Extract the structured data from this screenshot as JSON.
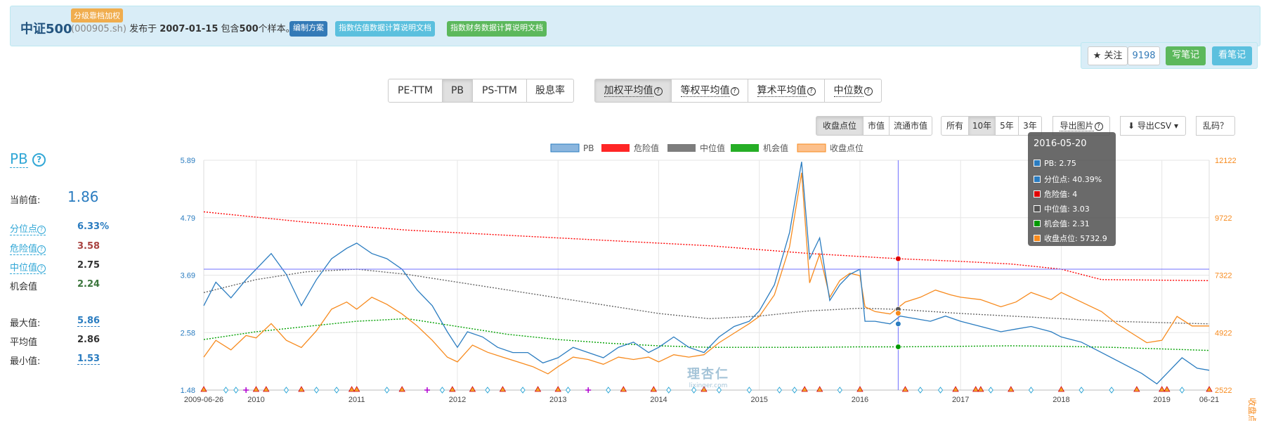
{
  "header": {
    "index_name": "中证500",
    "tier_badge": "分级靠档加权",
    "code": "(000905.sh)",
    "published_prefix": "发布于",
    "published_date": "2007-01-15",
    "contains_prefix": "包含",
    "sample_count": "500",
    "sample_suffix": "个样本。",
    "buttons": {
      "method": "编制方案",
      "valuation_doc": "指数估值数据计算说明文档",
      "finance_doc": "指数财务数据计算说明文档"
    },
    "colors": {
      "method": "#337ab7",
      "valuation_doc": "#5bc0de",
      "finance_doc": "#5cb85c"
    }
  },
  "follow": {
    "follow_label": "★ 关注",
    "follow_count": "9198",
    "write_note": "写笔记",
    "view_note": "看笔记"
  },
  "metric_tabs": [
    "PE-TTM",
    "PB",
    "PS-TTM",
    "股息率"
  ],
  "metric_active": "PB",
  "weight_tabs": [
    "加权平均值",
    "等权平均值",
    "算术平均值",
    "中位数"
  ],
  "weight_active": "加权平均值",
  "overlay_tabs": [
    "收盘点位",
    "市值",
    "流通市值"
  ],
  "overlay_active": "收盘点位",
  "range_tabs": [
    "所有",
    "10年",
    "5年",
    "3年"
  ],
  "range_active": "10年",
  "tools": {
    "export_image": "导出图片",
    "export_csv": "导出CSV",
    "garbled": "乱码？"
  },
  "stats": {
    "title": "PB",
    "current_label": "当前值:",
    "current_value": "1.86",
    "rows": [
      {
        "label": "分位点",
        "value": "6.33%",
        "color": "#2a7cc0",
        "link": true
      },
      {
        "label": "危险值",
        "value": "3.58",
        "color": "#a94442",
        "link": true
      },
      {
        "label": "中位值",
        "value": "2.75",
        "color": "#333333",
        "link": true
      },
      {
        "label": "机会值",
        "value": "2.24",
        "color": "#3c763d",
        "link": false
      },
      {
        "label": "最大值:",
        "value": "5.86",
        "color": "#2a7cc0",
        "link": false
      },
      {
        "label": "平均值",
        "value": "2.86",
        "color": "#333333",
        "link": false
      },
      {
        "label": "最小值:",
        "value": "1.53",
        "color": "#2a7cc0",
        "link": false
      }
    ]
  },
  "tooltip": {
    "date": "2016-05-20",
    "rows": [
      {
        "label": "PB: 2.75",
        "color": "#2a7cc0"
      },
      {
        "label": "分位点: 40.39%",
        "color": "#2a7cc0"
      },
      {
        "label": "危险值: 4",
        "color": "#e00000"
      },
      {
        "label": "中位值: 3.03",
        "color": "#555555"
      },
      {
        "label": "机会值: 2.31",
        "color": "#009900"
      },
      {
        "label": "收盘点位: 5732.9",
        "color": "#f78a1d"
      }
    ]
  },
  "watermark": {
    "main": "理杏仁",
    "sub": "lixinger.com"
  },
  "chart_data": {
    "type": "line",
    "legend": [
      "PB",
      "危险值",
      "中位值",
      "机会值",
      "收盘点位"
    ],
    "series_colors": [
      "#2a7cc0",
      "#ff0000",
      "#666666",
      "#00a000",
      "#f78a1d"
    ],
    "x_ticks": [
      "2009-06-26",
      "2010",
      "2011",
      "2012",
      "2013",
      "2014",
      "2015",
      "2016",
      "2017",
      "2018",
      "2019",
      "06-21"
    ],
    "y_left_ticks": [
      "5.89",
      "4.79",
      "3.69",
      "2.58",
      "1.48"
    ],
    "y_right_ticks": [
      "12122",
      "9722",
      "7322",
      "4922",
      "2522"
    ],
    "y_right_label": "收盘点位",
    "ylim_left": [
      1.48,
      5.89
    ],
    "ylim_right": [
      2522,
      12122
    ],
    "pb": [
      [
        2009.48,
        3.1
      ],
      [
        2009.6,
        3.55
      ],
      [
        2009.75,
        3.25
      ],
      [
        2009.9,
        3.6
      ],
      [
        2010.0,
        3.8
      ],
      [
        2010.15,
        4.1
      ],
      [
        2010.3,
        3.7
      ],
      [
        2010.45,
        3.1
      ],
      [
        2010.6,
        3.6
      ],
      [
        2010.75,
        4.0
      ],
      [
        2010.9,
        4.2
      ],
      [
        2011.0,
        4.3
      ],
      [
        2011.15,
        4.1
      ],
      [
        2011.3,
        4.0
      ],
      [
        2011.45,
        3.8
      ],
      [
        2011.6,
        3.4
      ],
      [
        2011.75,
        3.1
      ],
      [
        2011.9,
        2.6
      ],
      [
        2012.0,
        2.3
      ],
      [
        2012.1,
        2.6
      ],
      [
        2012.25,
        2.5
      ],
      [
        2012.4,
        2.3
      ],
      [
        2012.55,
        2.2
      ],
      [
        2012.7,
        2.2
      ],
      [
        2012.85,
        2.0
      ],
      [
        2013.0,
        2.1
      ],
      [
        2013.15,
        2.3
      ],
      [
        2013.3,
        2.2
      ],
      [
        2013.45,
        2.1
      ],
      [
        2013.6,
        2.3
      ],
      [
        2013.75,
        2.4
      ],
      [
        2013.9,
        2.2
      ],
      [
        2014.0,
        2.3
      ],
      [
        2014.15,
        2.5
      ],
      [
        2014.3,
        2.3
      ],
      [
        2014.45,
        2.2
      ],
      [
        2014.6,
        2.5
      ],
      [
        2014.75,
        2.7
      ],
      [
        2014.9,
        2.8
      ],
      [
        2015.0,
        3.0
      ],
      [
        2015.15,
        3.5
      ],
      [
        2015.3,
        4.5
      ],
      [
        2015.42,
        5.86
      ],
      [
        2015.5,
        4.0
      ],
      [
        2015.6,
        4.4
      ],
      [
        2015.7,
        3.2
      ],
      [
        2015.8,
        3.5
      ],
      [
        2015.9,
        3.7
      ],
      [
        2016.0,
        3.8
      ],
      [
        2016.05,
        2.8
      ],
      [
        2016.15,
        2.8
      ],
      [
        2016.3,
        2.75
      ],
      [
        2016.4,
        2.9
      ],
      [
        2016.55,
        2.85
      ],
      [
        2016.7,
        2.8
      ],
      [
        2016.85,
        2.9
      ],
      [
        2017.0,
        2.8
      ],
      [
        2017.2,
        2.7
      ],
      [
        2017.4,
        2.6
      ],
      [
        2017.55,
        2.65
      ],
      [
        2017.7,
        2.7
      ],
      [
        2017.9,
        2.6
      ],
      [
        2018.0,
        2.5
      ],
      [
        2018.2,
        2.4
      ],
      [
        2018.4,
        2.2
      ],
      [
        2018.6,
        2.0
      ],
      [
        2018.8,
        1.8
      ],
      [
        2018.95,
        1.6
      ],
      [
        2019.05,
        1.8
      ],
      [
        2019.2,
        2.1
      ],
      [
        2019.35,
        1.9
      ],
      [
        2019.47,
        1.86
      ]
    ],
    "close": [
      [
        2009.48,
        3900
      ],
      [
        2009.6,
        4600
      ],
      [
        2009.75,
        4200
      ],
      [
        2009.9,
        4800
      ],
      [
        2010.0,
        4700
      ],
      [
        2010.15,
        5300
      ],
      [
        2010.3,
        4600
      ],
      [
        2010.45,
        4300
      ],
      [
        2010.6,
        5000
      ],
      [
        2010.75,
        5900
      ],
      [
        2010.9,
        6200
      ],
      [
        2011.0,
        5900
      ],
      [
        2011.15,
        6400
      ],
      [
        2011.3,
        6100
      ],
      [
        2011.45,
        5700
      ],
      [
        2011.6,
        5200
      ],
      [
        2011.75,
        4600
      ],
      [
        2011.9,
        3900
      ],
      [
        2012.0,
        3700
      ],
      [
        2012.15,
        4400
      ],
      [
        2012.3,
        4100
      ],
      [
        2012.45,
        3900
      ],
      [
        2012.6,
        3700
      ],
      [
        2012.75,
        3500
      ],
      [
        2012.9,
        3200
      ],
      [
        2013.0,
        3500
      ],
      [
        2013.15,
        3900
      ],
      [
        2013.3,
        3800
      ],
      [
        2013.45,
        3600
      ],
      [
        2013.6,
        3900
      ],
      [
        2013.75,
        3800
      ],
      [
        2013.9,
        3900
      ],
      [
        2014.0,
        3700
      ],
      [
        2014.15,
        4000
      ],
      [
        2014.3,
        3900
      ],
      [
        2014.45,
        4000
      ],
      [
        2014.6,
        4500
      ],
      [
        2014.75,
        4900
      ],
      [
        2014.9,
        5300
      ],
      [
        2015.0,
        5600
      ],
      [
        2015.15,
        6500
      ],
      [
        2015.3,
        8500
      ],
      [
        2015.42,
        11600
      ],
      [
        2015.5,
        7000
      ],
      [
        2015.6,
        8200
      ],
      [
        2015.7,
        6400
      ],
      [
        2015.8,
        7100
      ],
      [
        2015.9,
        7400
      ],
      [
        2016.0,
        7300
      ],
      [
        2016.05,
        6000
      ],
      [
        2016.15,
        5800
      ],
      [
        2016.3,
        5700
      ],
      [
        2016.45,
        6200
      ],
      [
        2016.6,
        6400
      ],
      [
        2016.75,
        6700
      ],
      [
        2016.9,
        6500
      ],
      [
        2017.0,
        6400
      ],
      [
        2017.2,
        6300
      ],
      [
        2017.4,
        6000
      ],
      [
        2017.55,
        6200
      ],
      [
        2017.7,
        6600
      ],
      [
        2017.9,
        6300
      ],
      [
        2018.0,
        6600
      ],
      [
        2018.2,
        6200
      ],
      [
        2018.4,
        5800
      ],
      [
        2018.55,
        5300
      ],
      [
        2018.7,
        4900
      ],
      [
        2018.85,
        4500
      ],
      [
        2019.0,
        4600
      ],
      [
        2019.15,
        5600
      ],
      [
        2019.3,
        5200
      ],
      [
        2019.47,
        5200
      ]
    ],
    "danger": [
      [
        2009.48,
        4.9
      ],
      [
        2010.5,
        4.7
      ],
      [
        2011.5,
        4.55
      ],
      [
        2012.5,
        4.45
      ],
      [
        2013.5,
        4.35
      ],
      [
        2014.5,
        4.25
      ],
      [
        2015.5,
        4.1
      ],
      [
        2016.38,
        4.0
      ],
      [
        2017.0,
        3.95
      ],
      [
        2017.5,
        3.9
      ],
      [
        2018.0,
        3.8
      ],
      [
        2018.4,
        3.6
      ],
      [
        2019.47,
        3.58
      ]
    ],
    "median": [
      [
        2009.48,
        3.35
      ],
      [
        2010.0,
        3.6
      ],
      [
        2010.5,
        3.75
      ],
      [
        2011.0,
        3.8
      ],
      [
        2011.5,
        3.7
      ],
      [
        2012.0,
        3.55
      ],
      [
        2012.5,
        3.4
      ],
      [
        2013.0,
        3.25
      ],
      [
        2013.5,
        3.1
      ],
      [
        2014.0,
        2.95
      ],
      [
        2014.5,
        2.85
      ],
      [
        2015.0,
        2.9
      ],
      [
        2015.5,
        3.0
      ],
      [
        2016.0,
        3.05
      ],
      [
        2016.38,
        3.03
      ],
      [
        2017.0,
        2.95
      ],
      [
        2017.5,
        2.9
      ],
      [
        2018.0,
        2.85
      ],
      [
        2018.5,
        2.8
      ],
      [
        2019.47,
        2.75
      ]
    ],
    "opportunity": [
      [
        2009.48,
        2.45
      ],
      [
        2010.0,
        2.6
      ],
      [
        2010.5,
        2.7
      ],
      [
        2011.0,
        2.8
      ],
      [
        2011.5,
        2.85
      ],
      [
        2012.0,
        2.7
      ],
      [
        2012.5,
        2.55
      ],
      [
        2013.0,
        2.45
      ],
      [
        2013.5,
        2.38
      ],
      [
        2014.0,
        2.33
      ],
      [
        2014.5,
        2.3
      ],
      [
        2015.0,
        2.3
      ],
      [
        2015.5,
        2.3
      ],
      [
        2016.0,
        2.31
      ],
      [
        2016.38,
        2.31
      ],
      [
        2017.0,
        2.32
      ],
      [
        2017.5,
        2.33
      ],
      [
        2018.0,
        2.32
      ],
      [
        2018.5,
        2.3
      ],
      [
        2019.47,
        2.24
      ]
    ],
    "crosshair": {
      "x": 2016.38,
      "pb": 2.75,
      "median": 3.03,
      "danger": 4.0,
      "opportunity": 2.31,
      "close": 5732.9
    },
    "hline_value": 3.8,
    "event_marks_triangle": [
      2009.48,
      2010.0,
      2010.1,
      2010.45,
      2010.95,
      2011.0,
      2011.45,
      2011.95,
      2012.15,
      2012.45,
      2012.8,
      2013.0,
      2013.65,
      2013.95,
      2014.45,
      2015.45,
      2015.6,
      2016.0,
      2016.45,
      2016.95,
      2017.15,
      2017.2,
      2017.5,
      2018.0,
      2018.75,
      2019.0,
      2019.05,
      2019.47
    ],
    "event_marks_plus": [
      2009.9,
      2011.7,
      2013.3
    ],
    "event_marks_diamond": [
      2009.7,
      2009.8,
      2010.3,
      2010.6,
      2010.8,
      2011.3,
      2011.85,
      2012.3,
      2012.65,
      2013.1,
      2013.5,
      2014.1,
      2014.35,
      2014.6,
      2014.9,
      2015.2,
      2015.35,
      2015.8,
      2016.6,
      2016.8,
      2017.3,
      2017.7,
      2018.2,
      2018.5,
      2019.2
    ]
  }
}
